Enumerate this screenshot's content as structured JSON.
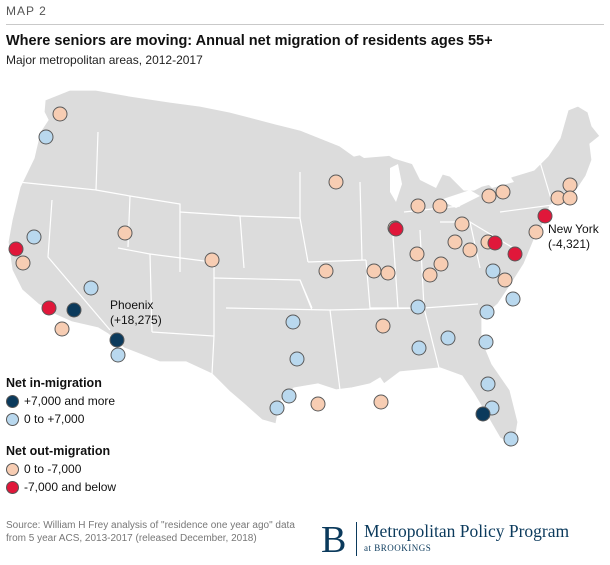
{
  "header": {
    "tag": "MAP 2",
    "title": "Where seniors are moving: Annual net migration of residents ages 55+",
    "subtitle": "Major metropolitan areas, 2012-2017"
  },
  "colors": {
    "in_high": "#0b3a5c",
    "in_low": "#b9d8ee",
    "out_low": "#f7cdb3",
    "out_high": "#e0173a",
    "land": "#dcdcdc",
    "border": "#ffffff"
  },
  "legend": {
    "in_heading": "Net in-migration",
    "in_high": "+7,000 and more",
    "in_low": "0 to +7,000",
    "out_heading": "Net out-migration",
    "out_low": "0 to -7,000",
    "out_high": "-7,000 and below"
  },
  "callouts": {
    "phoenix_name": "Phoenix",
    "phoenix_value": "(+18,275)",
    "newyork_name": "New York",
    "newyork_value": "(-4,321)"
  },
  "footer": {
    "source": "Source: William H Frey analysis of \"residence one year ago\" data from 5 year ACS, 2013-2017 (released December, 2018)",
    "brand_letter": "B",
    "brand_name": "Metropolitan Policy Program",
    "brand_sub": "at BROOKINGS"
  }
}
